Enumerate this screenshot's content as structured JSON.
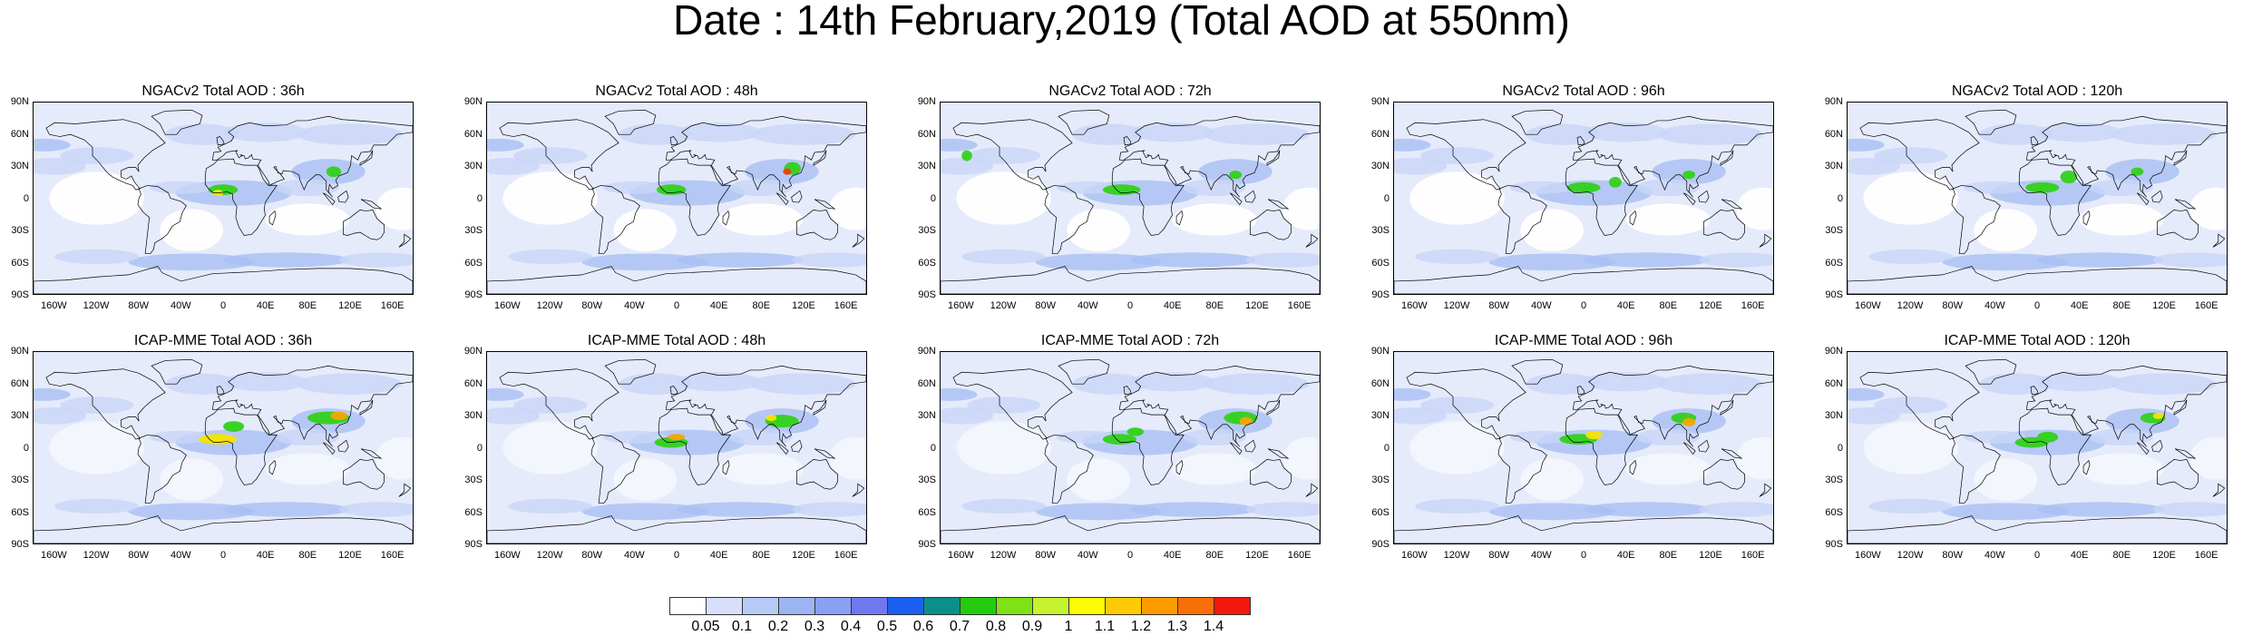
{
  "title": "Date : 14th February,2019 (Total AOD at 550nm)",
  "lat_ticks": [
    "90N",
    "60N",
    "30N",
    "0",
    "30S",
    "60S",
    "90S"
  ],
  "lon_ticks": [
    "160W",
    "120W",
    "80W",
    "40W",
    "0",
    "40E",
    "80E",
    "120E",
    "160E"
  ],
  "panels": [
    {
      "title": "NGACv2 Total AOD : 36h",
      "model": "NGACv2",
      "lead_hours": 36
    },
    {
      "title": "NGACv2 Total AOD : 48h",
      "model": "NGACv2",
      "lead_hours": 48
    },
    {
      "title": "NGACv2 Total AOD : 72h",
      "model": "NGACv2",
      "lead_hours": 72
    },
    {
      "title": "NGACv2 Total AOD : 96h",
      "model": "NGACv2",
      "lead_hours": 96
    },
    {
      "title": "NGACv2 Total AOD : 120h",
      "model": "NGACv2",
      "lead_hours": 120
    },
    {
      "title": "ICAP-MME Total AOD : 36h",
      "model": "ICAP-MME",
      "lead_hours": 36
    },
    {
      "title": "ICAP-MME Total AOD : 48h",
      "model": "ICAP-MME",
      "lead_hours": 48
    },
    {
      "title": "ICAP-MME Total AOD : 72h",
      "model": "ICAP-MME",
      "lead_hours": 72
    },
    {
      "title": "ICAP-MME Total AOD : 96h",
      "model": "ICAP-MME",
      "lead_hours": 96
    },
    {
      "title": "ICAP-MME Total AOD : 120h",
      "model": "ICAP-MME",
      "lead_hours": 120
    }
  ],
  "colorbar": {
    "labels": [
      "0.05",
      "0.1",
      "0.2",
      "0.3",
      "0.4",
      "0.5",
      "0.6",
      "0.7",
      "0.8",
      "0.9",
      "1",
      "1.1",
      "1.2",
      "1.3",
      "1.4"
    ],
    "colors": [
      "#ffffff",
      "#d6e0fb",
      "#b7c9f6",
      "#9db4f3",
      "#8aa0f2",
      "#6f78ee",
      "#1a5ff0",
      "#0b8f8d",
      "#23cd0d",
      "#7ee314",
      "#c6f22e",
      "#fefc01",
      "#fdcb06",
      "#fd9c00",
      "#f76f09",
      "#f4180c"
    ]
  },
  "map_colors": {
    "ocean_base": "#e5ebfb",
    "aod_low": "#c9d6f8",
    "aod_mid": "#a9bff4",
    "aod_high": "#8fa7f0",
    "dust_green": "#32d11a",
    "dust_yellow": "#f5e400",
    "dust_orange": "#f5a500",
    "dust_red": "#f03d0a",
    "coastline": "#000000"
  }
}
